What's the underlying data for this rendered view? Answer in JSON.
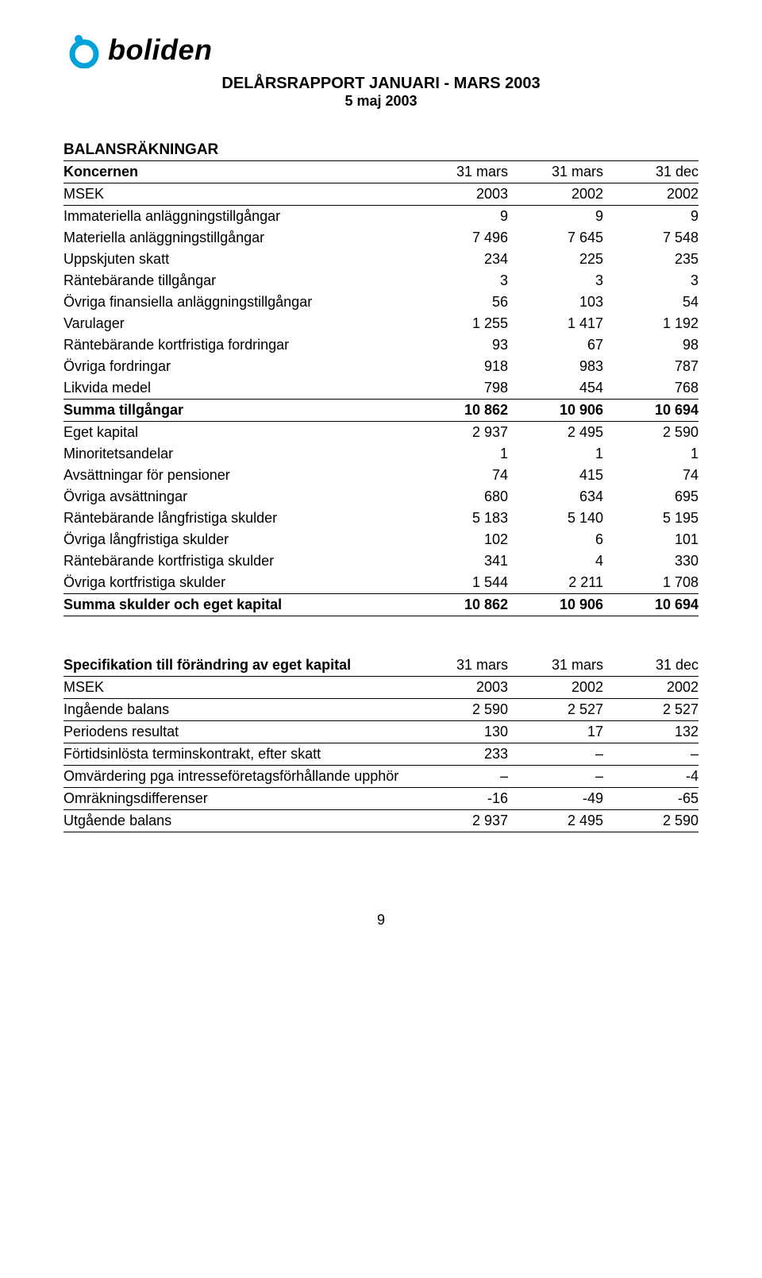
{
  "brand": {
    "logo_color_primary": "#00A3D9",
    "logo_dot_color": "#00A3D9",
    "wordmark": "boliden"
  },
  "header": {
    "title": "DELÅRSRAPPORT JANUARI - MARS  2003",
    "subtitle": "5 maj 2003"
  },
  "balance": {
    "section_title": "BALANSRÄKNINGAR",
    "group_label": "Koncernen",
    "period_headers": [
      "31 mars",
      "31 mars",
      "31 dec"
    ],
    "unit_label": "MSEK",
    "year_headers": [
      "2003",
      "2002",
      "2002"
    ],
    "asset_rows": [
      {
        "label": "Immateriella anläggningstillgångar",
        "v": [
          "9",
          "9",
          "9"
        ]
      },
      {
        "label": "Materiella anläggningstillgångar",
        "v": [
          "7 496",
          "7 645",
          "7 548"
        ]
      },
      {
        "label": "Uppskjuten skatt",
        "v": [
          "234",
          "225",
          "235"
        ]
      },
      {
        "label": "Räntebärande tillgångar",
        "v": [
          "3",
          "3",
          "3"
        ]
      },
      {
        "label": "Övriga finansiella anläggningstillgångar",
        "v": [
          "56",
          "103",
          "54"
        ]
      },
      {
        "label": "Varulager",
        "v": [
          "1 255",
          "1 417",
          "1 192"
        ]
      },
      {
        "label": "Räntebärande kortfristiga fordringar",
        "v": [
          "93",
          "67",
          "98"
        ]
      },
      {
        "label": "Övriga fordringar",
        "v": [
          "918",
          "983",
          "787"
        ]
      },
      {
        "label": "Likvida medel",
        "v": [
          "798",
          "454",
          "768"
        ]
      }
    ],
    "assets_total": {
      "label": "Summa tillgångar",
      "v": [
        "10 862",
        "10 906",
        "10 694"
      ]
    },
    "equity_rows": [
      {
        "label": "Eget kapital",
        "v": [
          "2 937",
          "2 495",
          "2 590"
        ]
      },
      {
        "label": "Minoritetsandelar",
        "v": [
          "1",
          "1",
          "1"
        ]
      },
      {
        "label": "Avsättningar för pensioner",
        "v": [
          "74",
          "415",
          "74"
        ]
      },
      {
        "label": "Övriga avsättningar",
        "v": [
          "680",
          "634",
          "695"
        ]
      },
      {
        "label": "Räntebärande långfristiga skulder",
        "v": [
          "5 183",
          "5 140",
          "5 195"
        ]
      },
      {
        "label": "Övriga långfristiga skulder",
        "v": [
          "102",
          "6",
          "101"
        ]
      },
      {
        "label": "Räntebärande kortfristiga skulder",
        "v": [
          "341",
          "4",
          "330"
        ]
      },
      {
        "label": "Övriga kortfristiga skulder",
        "v": [
          "1 544",
          "2 211",
          "1 708"
        ]
      }
    ],
    "equity_total": {
      "label": "Summa skulder och eget kapital",
      "v": [
        "10 862",
        "10 906",
        "10 694"
      ]
    }
  },
  "spec": {
    "section_title": "Specifikation till förändring av eget kapital",
    "period_headers": [
      "31 mars",
      "31 mars",
      "31 dec"
    ],
    "unit_label": "MSEK",
    "year_headers": [
      "2003",
      "2002",
      "2002"
    ],
    "rows": [
      {
        "label": "Ingående balans",
        "v": [
          "2 590",
          "2 527",
          "2 527"
        ]
      },
      {
        "label": "Periodens resultat",
        "v": [
          "130",
          "17",
          "132"
        ]
      },
      {
        "label": "Förtidsinlösta terminskontrakt, efter skatt",
        "v": [
          "233",
          "–",
          "–"
        ]
      },
      {
        "label": "Omvärdering pga intresseföretagsförhållande upphör",
        "v": [
          "–",
          "–",
          "-4"
        ]
      },
      {
        "label": "Omräkningsdifferenser",
        "v": [
          "-16",
          "-49",
          "-65"
        ]
      },
      {
        "label": "Utgående balans",
        "v": [
          "2 937",
          "2 495",
          "2 590"
        ]
      }
    ]
  },
  "page_number": "9"
}
